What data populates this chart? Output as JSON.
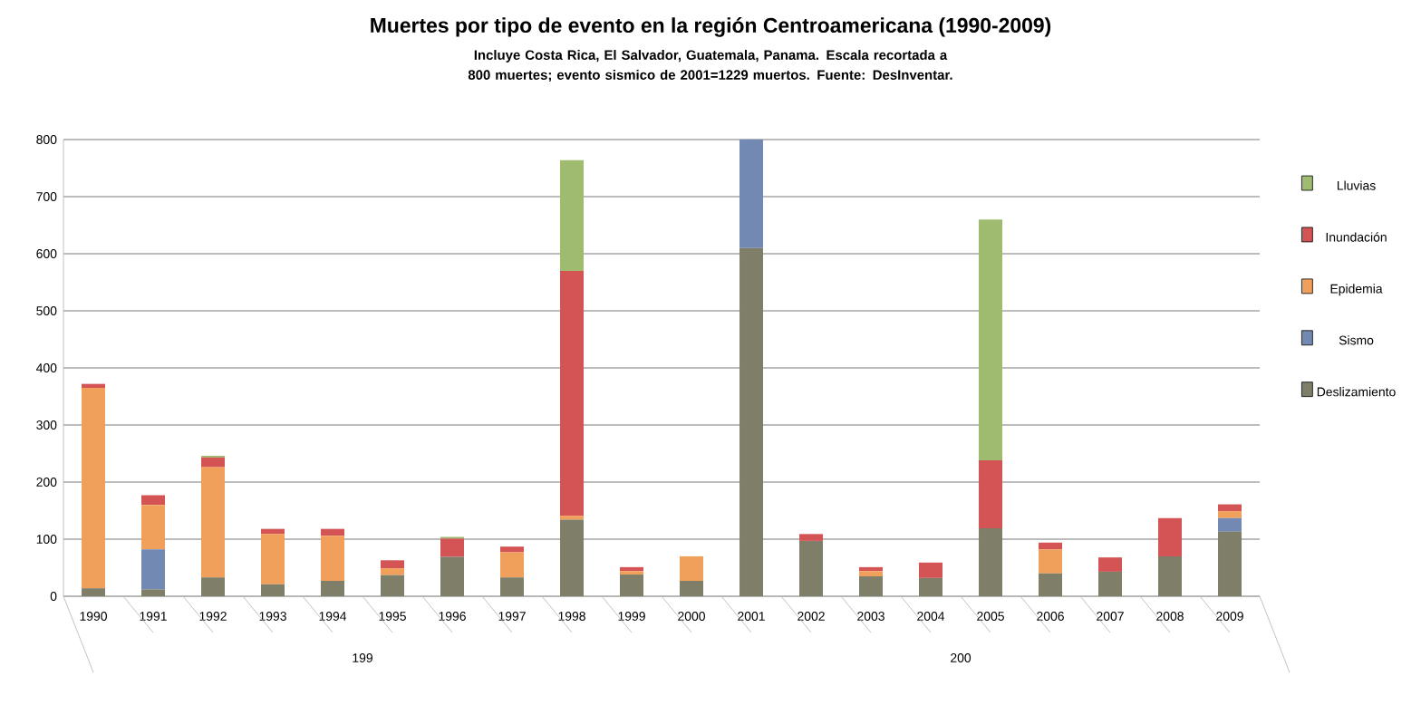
{
  "chart_data": {
    "type": "bar",
    "stacked": true,
    "title": "Muertes por tipo de evento en la región Centroamericana (1990-2009)",
    "subtitle": "Incluye Costa Rica, El Salvador, Guatemala, Panama.  Escala recortada a 800 muertes; evento sismico de 2001=1229 muertos. Fuente: DesInventar.",
    "categories": [
      "1990",
      "1991",
      "1992",
      "1993",
      "1994",
      "1995",
      "1996",
      "1997",
      "1998",
      "1999",
      "2000",
      "2001",
      "2002",
      "2003",
      "2004",
      "2005",
      "2006",
      "2007",
      "2008",
      "2009"
    ],
    "series": [
      {
        "name": "Deslizamiento",
        "color": "#7f7e68",
        "values": [
          14,
          12,
          33,
          21,
          27,
          37,
          69,
          33,
          134,
          38,
          27,
          610,
          97,
          35,
          32,
          119,
          40,
          43,
          70,
          113
        ]
      },
      {
        "name": "Sismo",
        "color": "#7189b3",
        "values": [
          0,
          70,
          0,
          0,
          0,
          0,
          0,
          0,
          0,
          0,
          0,
          190,
          0,
          0,
          0,
          0,
          0,
          0,
          0,
          24
        ]
      },
      {
        "name": "Epidemia",
        "color": "#f0a05a",
        "values": [
          351,
          78,
          193,
          88,
          79,
          12,
          0,
          44,
          7,
          6,
          43,
          0,
          0,
          9,
          0,
          0,
          42,
          0,
          0,
          12
        ]
      },
      {
        "name": "Inundación",
        "color": "#d45455",
        "values": [
          7,
          17,
          17,
          9,
          12,
          14,
          32,
          10,
          429,
          7,
          0,
          0,
          12,
          7,
          27,
          119,
          12,
          25,
          67,
          12
        ]
      },
      {
        "name": "Lluvias",
        "color": "#9fbb70",
        "values": [
          0,
          0,
          3,
          0,
          0,
          0,
          3,
          0,
          194,
          0,
          0,
          0,
          0,
          0,
          0,
          422,
          0,
          0,
          0,
          0
        ]
      }
    ],
    "ylim": [
      0,
      800
    ],
    "yticks": [
      0,
      100,
      200,
      300,
      400,
      500,
      600,
      700,
      800
    ],
    "grid": "y",
    "legend": "right",
    "annotations": [
      "199",
      "200"
    ]
  }
}
